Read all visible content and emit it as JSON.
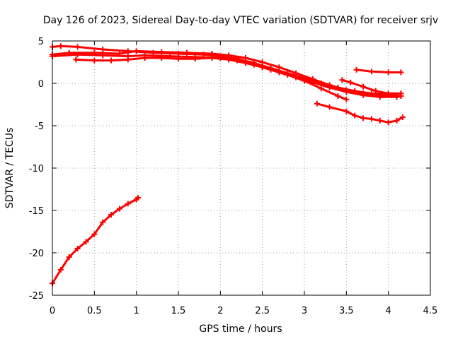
{
  "chart_data": {
    "type": "scatter",
    "title": "Day 126 of 2023, Sidereal Day-to-day VTEC variation (SDTVAR) for receiver srjv",
    "xlabel": "GPS time / hours",
    "ylabel": "SDTVAR / TECUs",
    "xlim": [
      0,
      4.5
    ],
    "ylim": [
      -25,
      5
    ],
    "xticks": [
      "0",
      "0.5",
      "1",
      "1.5",
      "2",
      "2.5",
      "3",
      "3.5",
      "4",
      "4.5"
    ],
    "yticks": [
      "5",
      "0",
      "-5",
      "-10",
      "-15",
      "-20",
      "-25"
    ],
    "grid": true,
    "color": "#ff0000",
    "marker": "plus",
    "series": [
      {
        "x": [
          0.0,
          0.1,
          0.2,
          0.3,
          0.4,
          0.5,
          0.6,
          0.7,
          0.8,
          0.9,
          1.0,
          1.02
        ],
        "y": [
          -23.6,
          -22.0,
          -20.5,
          -19.5,
          -18.7,
          -17.8,
          -16.4,
          -15.5,
          -14.8,
          -14.2,
          -13.7,
          -13.5
        ]
      },
      {
        "x": [
          0.0,
          0.1,
          0.3,
          0.6,
          0.9,
          1.2,
          1.5,
          1.8,
          2.0,
          2.2,
          2.4,
          2.6,
          2.8,
          3.0,
          3.2,
          3.4,
          3.6,
          3.8,
          4.0,
          4.15
        ],
        "y": [
          4.3,
          4.4,
          4.3,
          4.0,
          3.8,
          3.6,
          3.5,
          3.4,
          3.2,
          2.9,
          2.4,
          1.8,
          1.2,
          0.6,
          0.0,
          -0.5,
          -0.9,
          -1.2,
          -1.3,
          -1.2
        ]
      },
      {
        "x": [
          0.0,
          0.2,
          0.5,
          0.8,
          1.0,
          1.3,
          1.6,
          1.9,
          2.1,
          2.3,
          2.5,
          2.7,
          2.9,
          3.1,
          3.3,
          3.5,
          3.7,
          3.9,
          4.1,
          4.15
        ],
        "y": [
          3.4,
          3.6,
          3.6,
          3.5,
          3.8,
          3.7,
          3.6,
          3.5,
          3.3,
          3.0,
          2.5,
          1.9,
          1.2,
          0.5,
          -0.2,
          -0.8,
          -1.2,
          -1.4,
          -1.5,
          -1.5
        ]
      },
      {
        "x": [
          0.0,
          0.3,
          0.6,
          0.9,
          1.1,
          1.4,
          1.7,
          2.0,
          2.2,
          2.4,
          2.6,
          2.8,
          3.0,
          3.2,
          3.4,
          3.5
        ],
        "y": [
          3.2,
          3.4,
          3.3,
          3.2,
          3.3,
          3.2,
          3.1,
          3.0,
          2.7,
          2.2,
          1.6,
          1.0,
          0.3,
          -0.6,
          -1.5,
          -1.9
        ]
      },
      {
        "x": [
          0.28,
          0.5,
          0.7,
          0.9,
          1.1,
          1.3,
          1.5,
          1.7,
          1.9,
          2.1,
          2.3,
          2.5,
          2.7,
          2.9,
          3.1,
          3.3,
          3.5,
          3.7,
          3.9,
          4.1,
          4.15
        ],
        "y": [
          2.8,
          2.7,
          2.7,
          2.8,
          3.0,
          3.0,
          2.9,
          2.9,
          3.0,
          2.8,
          2.4,
          1.9,
          1.3,
          0.7,
          0.1,
          -0.5,
          -1.0,
          -1.4,
          -1.6,
          -1.6,
          -1.5
        ]
      },
      {
        "x": [
          3.62,
          3.8,
          4.0,
          4.15
        ],
        "y": [
          1.6,
          1.4,
          1.3,
          1.3
        ]
      },
      {
        "x": [
          3.15,
          3.3,
          3.5,
          3.6,
          3.7,
          3.8,
          3.9,
          4.0,
          4.1,
          4.17
        ],
        "y": [
          -2.4,
          -2.8,
          -3.3,
          -3.8,
          -4.1,
          -4.2,
          -4.4,
          -4.6,
          -4.4,
          -4.0
        ]
      },
      {
        "x": [
          3.45,
          3.55,
          3.7,
          3.85,
          4.0,
          4.15
        ],
        "y": [
          0.4,
          0.1,
          -0.4,
          -0.9,
          -1.2,
          -1.2
        ]
      }
    ]
  }
}
